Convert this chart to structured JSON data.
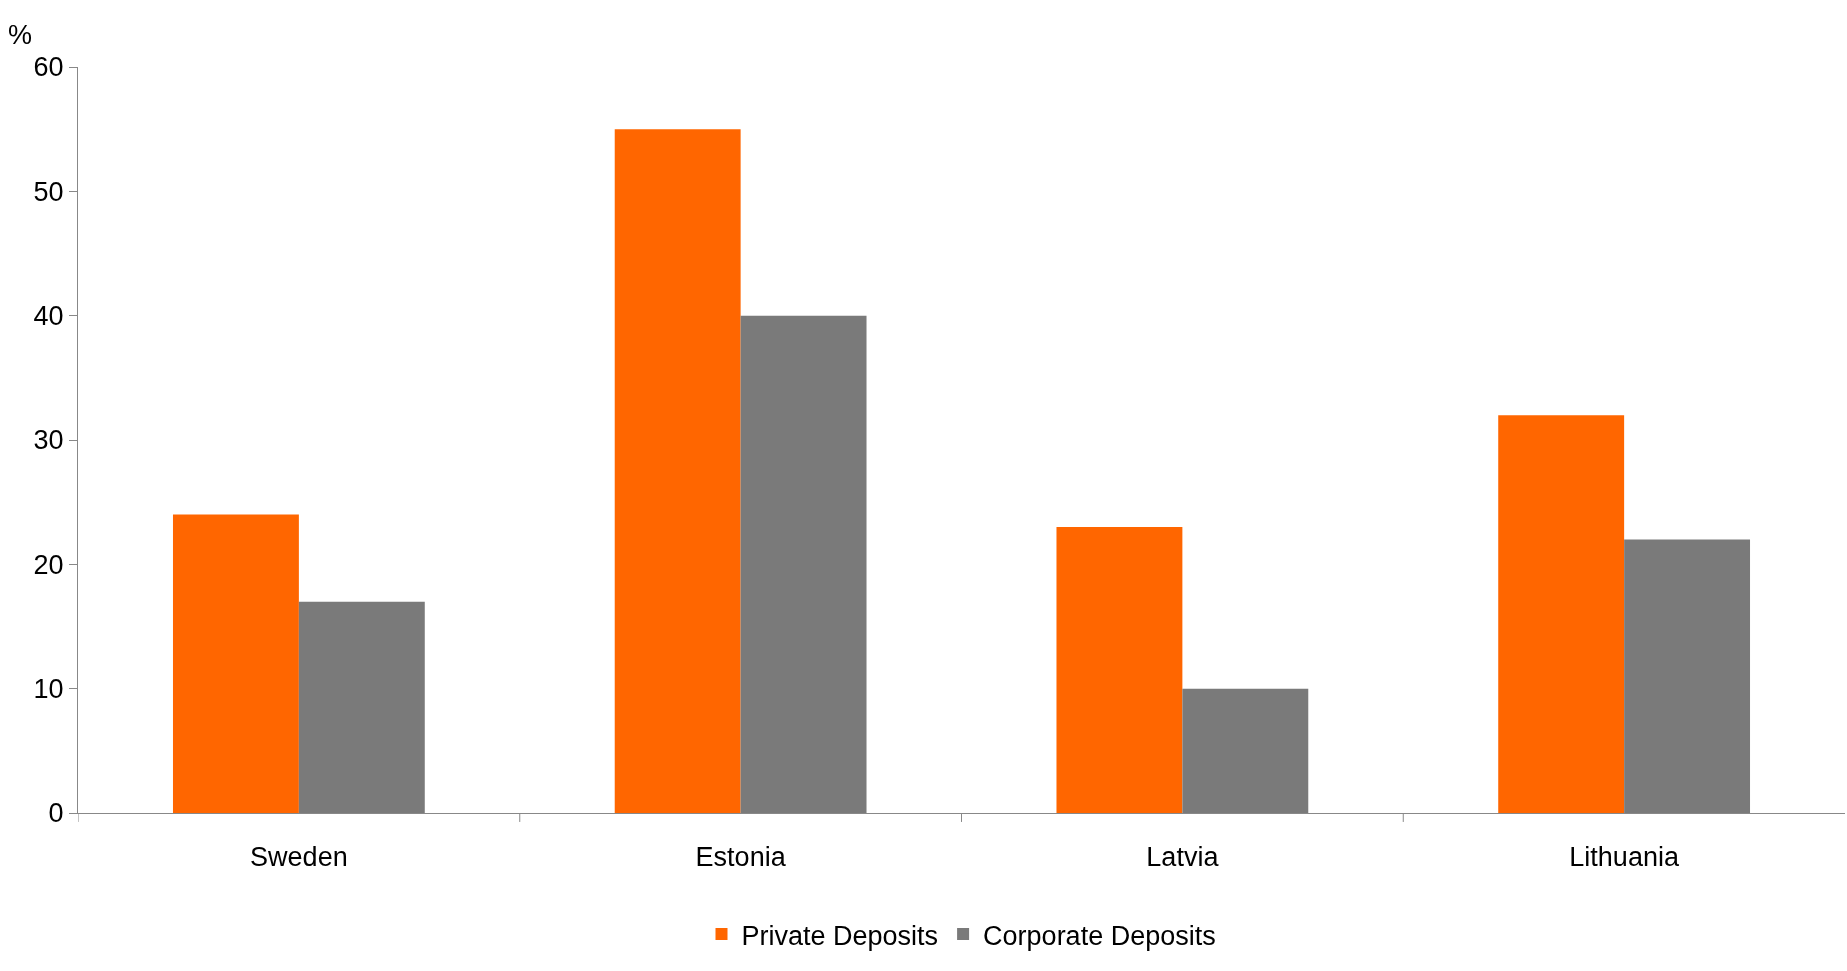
{
  "chart_data": {
    "type": "bar",
    "ylabel": "%",
    "categories": [
      "Sweden",
      "Estonia",
      "Latvia",
      "Lithuania"
    ],
    "series": [
      {
        "name": "Private Deposits",
        "color": "#ff6600",
        "values": [
          24,
          55,
          23,
          32
        ]
      },
      {
        "name": "Corporate Deposits",
        "color": "#7a7a7a",
        "values": [
          17,
          40,
          10,
          22
        ]
      }
    ],
    "ylim": [
      0,
      60
    ],
    "yticks": [
      0,
      10,
      20,
      30,
      40,
      50,
      60
    ],
    "grid": false,
    "legend": "bottom"
  }
}
